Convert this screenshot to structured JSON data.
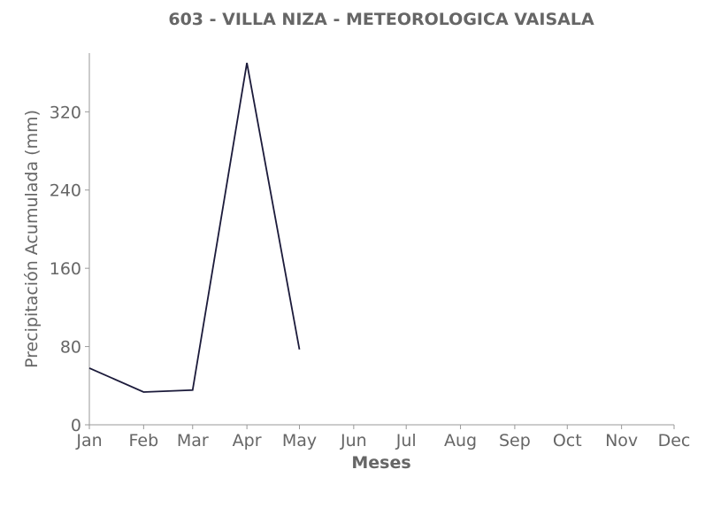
{
  "chart_data": {
    "type": "line",
    "title": "603 - VILLA NIZA - METEOROLOGICA VAISALA",
    "xlabel": "Meses",
    "ylabel": "Precipitación Acumulada (mm)",
    "categories": [
      "Jan",
      "Feb",
      "Mar",
      "Apr",
      "May",
      "Jun",
      "Jul",
      "Aug",
      "Sep",
      "Oct",
      "Nov",
      "Dec"
    ],
    "x_positions": [
      1,
      32,
      60,
      91,
      121,
      152,
      182,
      213,
      244,
      274,
      305,
      335
    ],
    "xlim": [
      1,
      335
    ],
    "ylim": [
      0,
      380
    ],
    "yticks": [
      0,
      80,
      160,
      240,
      320
    ],
    "grid": false,
    "series": [
      {
        "x": [
          1,
          32,
          60,
          91,
          121
        ],
        "y": [
          58,
          33.5,
          35.5,
          370,
          77
        ],
        "color": "#1b1a3a"
      }
    ]
  }
}
